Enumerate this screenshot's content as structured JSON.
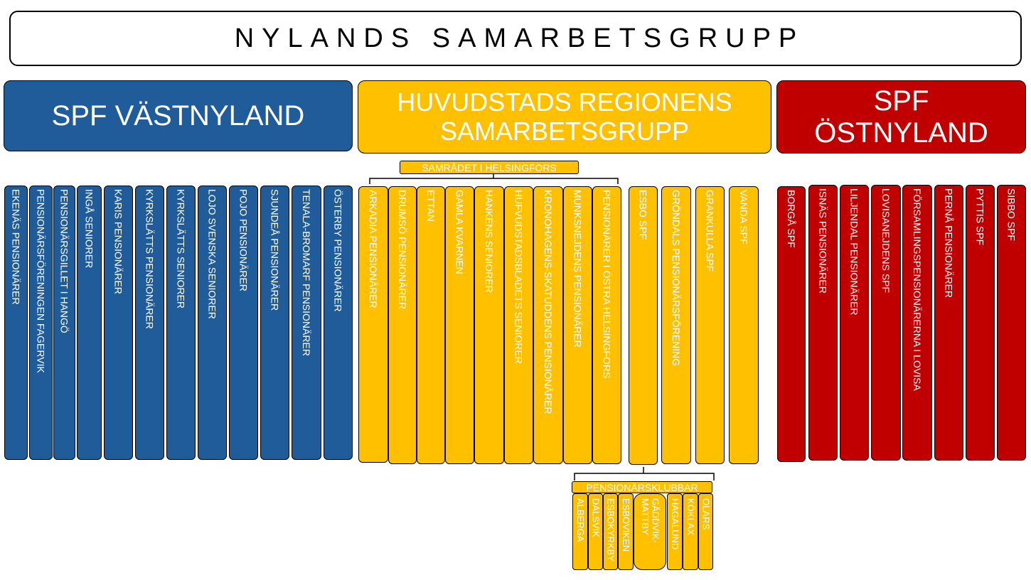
{
  "title": "NYLANDS SAMARBETSGRUPP",
  "colors": {
    "blue": "#1f5c99",
    "yellow": "#ffc000",
    "red": "#c00000"
  },
  "groups": {
    "vast": {
      "name": "SPF VÄSTNYLAND",
      "members": [
        "EKENÄS PENSIONÄRER",
        "PENSIONÄRSFÖRENINGEN FAGERVIK",
        "PENSIONÄRSGILLET I HANGÖ",
        "INGÅ SENIORER",
        "KARIS PENSIONÄRER",
        "KYRKSLÄTTS PENSIONÄRER",
        "KYRKSLÄTTS SENIORER",
        "LOJO SVENSKA SENIORER",
        "POJO PENSIONÄRER",
        "SJUNDEÅ PENSIONÄRER",
        "TENALA-BROMARF PENSIONÄRER",
        "ÖSTERBY PENSIONÄRER"
      ]
    },
    "huvudstad": {
      "name": "HUVUDSTADS REGIONENS\nSAMARBETSGRUPP",
      "samradet_label": "SAMRÅDET I HELSINGFORS",
      "samradet_members": [
        "ARKADIA PENSIONÄRER",
        "DRUMSÖ PENSIONÄRER",
        "ETTAN",
        "GAMLA KVARNEN",
        "HANKENS SENIORER",
        "HUFVUDSTADSBLADETS SENIORER",
        "KRONOHAGENS-SKATUDDENS PENSIONÄRER",
        "MUNKSNEJDENS PENSIONÄRER",
        "PENSIONÄRER I ÖSTRA HELSINGFORS"
      ],
      "other_members": [
        "ESBO SPF",
        "GRÖNDALS PENSIONÄRSFÖRENING",
        "GRANKULLA SPF",
        "VANDA SPF"
      ],
      "klubbar_label": "PENSIONÄRSKLUBBAR",
      "klubbar": [
        "ALBERGA",
        "DALSVIK",
        "ESBOKYRKBY",
        "ESBOVIKEN",
        "GÄDDVIK-\nMATTBY",
        "HAGALUND",
        "KÖKLAX",
        "OLARS"
      ]
    },
    "ost": {
      "name": "SPF\nÖSTNYLAND",
      "members": [
        "BORGÅ SPF",
        "ISNÄS PENSIONÄRER",
        "LILJENDAL PENSIONÄRER",
        "LOVISANEJDENS SPF",
        "FÖRSAMLINGSPENSIONÄRERNA I LOVISA",
        "PERNÅ PENSIONÄRER",
        "PYTTIS SPF",
        "SIBBO SPF"
      ]
    }
  }
}
